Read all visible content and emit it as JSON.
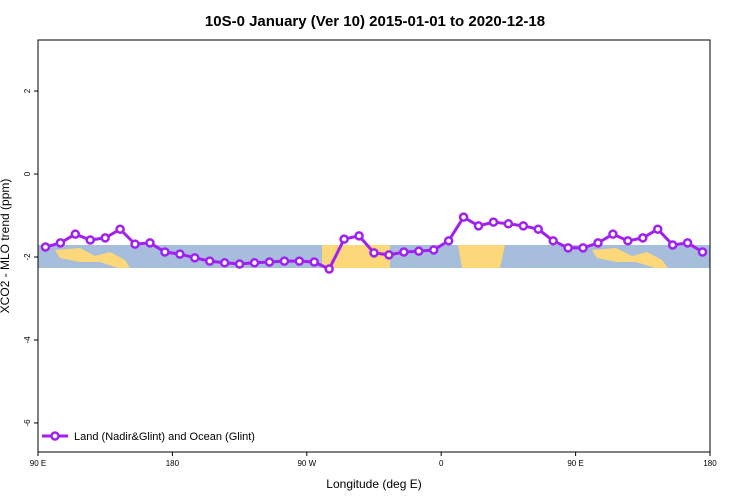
{
  "chart_data": {
    "type": "line",
    "title": "10S-0 January (Ver 10)   2015-01-01 to 2020-12-18",
    "xlabel": "Longitude (deg E)",
    "ylabel": "XCO2 - MLO trend (ppm)",
    "xlim": [
      90,
      540
    ],
    "xticks": [
      {
        "value": 90,
        "label": "90 E"
      },
      180,
      {
        "value": 270,
        "label": "90 W"
      },
      {
        "value": 360,
        "label": "0"
      },
      {
        "value": 450,
        "label": "90 E"
      },
      {
        "value": 540,
        "label": "180"
      }
    ],
    "ylim": [
      -6.7,
      3.23
    ],
    "yticks": [
      -6,
      -4,
      -2,
      0,
      2
    ],
    "legend": "bottom-left",
    "x": [
      95,
      105,
      115,
      125,
      135,
      145,
      155,
      165,
      175,
      185,
      195,
      205,
      215,
      225,
      235,
      245,
      255,
      265,
      275,
      285,
      295,
      305,
      315,
      325,
      335,
      345,
      355,
      365,
      375,
      385,
      395,
      405,
      415,
      425,
      435,
      445,
      455,
      465,
      475,
      485,
      495,
      505,
      515,
      525,
      535
    ],
    "series": [
      {
        "name": "Land (Nadir&Glint) and Ocean (Glint)",
        "color": "#a020f0",
        "values": [
          -1.76,
          -1.66,
          -1.45,
          -1.59,
          -1.54,
          -1.33,
          -1.69,
          -1.66,
          -1.88,
          -1.93,
          -2.02,
          -2.1,
          -2.14,
          -2.17,
          -2.14,
          -2.12,
          -2.1,
          -2.1,
          -2.12,
          -2.29,
          -1.57,
          -1.49,
          -1.9,
          -1.95,
          -1.88,
          -1.86,
          -1.83,
          -1.61,
          -1.04,
          -1.25,
          -1.16,
          -1.2,
          -1.25,
          -1.33,
          -1.61,
          -1.78,
          -1.78,
          -1.66,
          -1.45,
          -1.61,
          -1.54,
          -1.33,
          -1.71,
          -1.66,
          -1.88
        ]
      }
    ]
  }
}
